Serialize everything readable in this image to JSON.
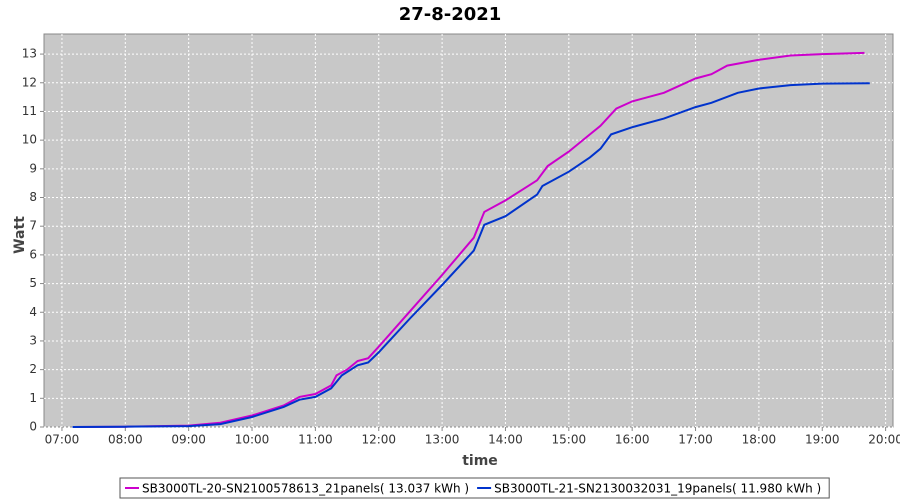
{
  "chart_data": {
    "type": "line",
    "title": "27-8-2021",
    "xlabel": "time",
    "ylabel": "Watt",
    "xlim": [
      "06:43",
      "20:07"
    ],
    "ylim": [
      0,
      13.7
    ],
    "xticks": [
      "07:00",
      "08:00",
      "09:00",
      "10:00",
      "11:00",
      "12:00",
      "13:00",
      "14:00",
      "15:00",
      "16:00",
      "17:00",
      "18:00",
      "19:00",
      "20:00"
    ],
    "yticks": [
      0,
      1,
      2,
      3,
      4,
      5,
      6,
      7,
      8,
      9,
      10,
      11,
      12,
      13
    ],
    "grid": true,
    "series": [
      {
        "name": "SB3000TL-20-SN2100578613_21panels( 13.037 kWh )",
        "color": "#cc00cc",
        "x": [
          "07:10",
          "08:00",
          "09:00",
          "09:30",
          "10:00",
          "10:30",
          "10:45",
          "11:00",
          "11:15",
          "11:20",
          "11:30",
          "11:40",
          "11:50",
          "12:00",
          "12:30",
          "13:00",
          "13:30",
          "13:40",
          "14:00",
          "14:30",
          "14:40",
          "15:00",
          "15:20",
          "15:30",
          "15:45",
          "16:00",
          "16:30",
          "17:00",
          "17:15",
          "17:30",
          "18:00",
          "18:30",
          "19:00",
          "19:40"
        ],
        "values": [
          0,
          0.01,
          0.05,
          0.15,
          0.4,
          0.75,
          1.05,
          1.15,
          1.45,
          1.8,
          2.0,
          2.3,
          2.4,
          2.8,
          4.05,
          5.3,
          6.6,
          7.5,
          7.9,
          8.6,
          9.1,
          9.6,
          10.2,
          10.5,
          11.1,
          11.35,
          11.65,
          12.15,
          12.3,
          12.6,
          12.8,
          12.95,
          13.0,
          13.04
        ]
      },
      {
        "name": "SB3000TL-21-SN2130032031_19panels( 11.980 kWh )",
        "color": "#0033cc",
        "x": [
          "07:10",
          "08:00",
          "09:00",
          "09:30",
          "10:00",
          "10:30",
          "10:45",
          "11:00",
          "11:15",
          "11:25",
          "11:40",
          "11:50",
          "12:00",
          "12:30",
          "13:00",
          "13:30",
          "13:40",
          "14:00",
          "14:30",
          "14:35",
          "15:00",
          "15:20",
          "15:30",
          "15:40",
          "16:00",
          "16:30",
          "17:00",
          "17:15",
          "17:40",
          "18:00",
          "18:30",
          "19:00",
          "19:45"
        ],
        "values": [
          0,
          0.01,
          0.03,
          0.1,
          0.35,
          0.7,
          0.95,
          1.05,
          1.35,
          1.8,
          2.15,
          2.25,
          2.6,
          3.8,
          4.95,
          6.15,
          7.05,
          7.35,
          8.1,
          8.4,
          8.9,
          9.4,
          9.7,
          10.2,
          10.45,
          10.75,
          11.15,
          11.3,
          11.65,
          11.8,
          11.92,
          11.97,
          11.98
        ]
      }
    ]
  }
}
